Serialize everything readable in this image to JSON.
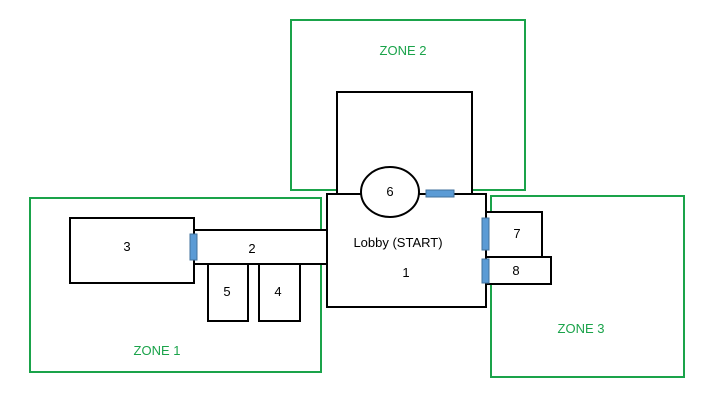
{
  "zones": {
    "zone1": {
      "label": "ZONE 1"
    },
    "zone2": {
      "label": "ZONE 2"
    },
    "zone3": {
      "label": "ZONE 3"
    }
  },
  "rooms": {
    "lobby": {
      "title": "Lobby (START)",
      "number": "1"
    },
    "r2": {
      "number": "2"
    },
    "r3": {
      "number": "3"
    },
    "r4": {
      "number": "4"
    },
    "r5": {
      "number": "5"
    },
    "r6": {
      "number": "6"
    },
    "r7": {
      "number": "7"
    },
    "r8": {
      "number": "8"
    }
  },
  "colors": {
    "zone_border": "#1aa34a",
    "room_border": "#000000",
    "door": "#5b9bd5"
  }
}
